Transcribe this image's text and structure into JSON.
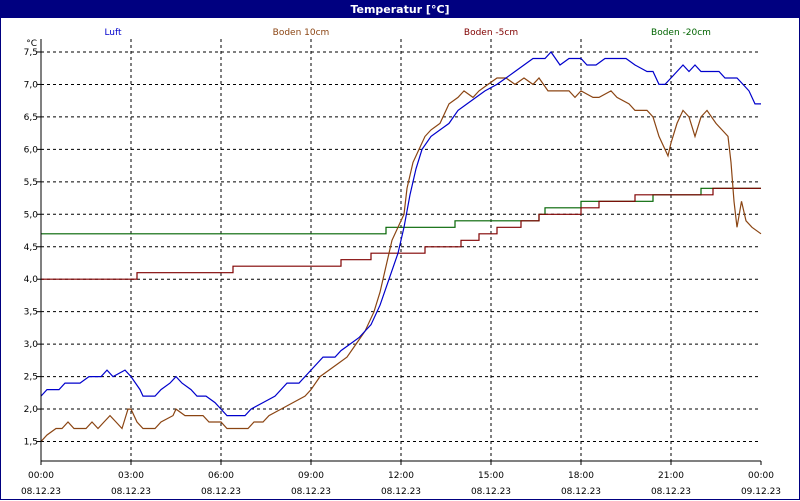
{
  "window": {
    "title": "Temperatur [°C]",
    "title_bg": "#000080"
  },
  "chart_data": {
    "type": "line",
    "title": "Temperatur [°C]",
    "unit": "°C",
    "grid": true,
    "legend_position": "top",
    "x_ticks": [
      {
        "time": "00:00",
        "date": "08.12.23"
      },
      {
        "time": "03:00",
        "date": "08.12.23"
      },
      {
        "time": "06:00",
        "date": "08.12.23"
      },
      {
        "time": "09:00",
        "date": "08.12.23"
      },
      {
        "time": "12:00",
        "date": "08.12.23"
      },
      {
        "time": "15:00",
        "date": "08.12.23"
      },
      {
        "time": "18:00",
        "date": "08.12.23"
      },
      {
        "time": "21:00",
        "date": "08.12.23"
      },
      {
        "time": "00:00",
        "date": "09.12.23"
      }
    ],
    "x_range_hours": [
      0,
      24
    ],
    "y_ticks": [
      "1,5",
      "2,0",
      "2,5",
      "3,0",
      "3,5",
      "4,0",
      "4,5",
      "5,0",
      "5,5",
      "6,0",
      "6,5",
      "7,0",
      "7,5"
    ],
    "y_range": [
      1.2,
      7.7
    ],
    "series": [
      {
        "name": "Luft",
        "color": "#0000cc",
        "points": [
          [
            0,
            2.2
          ],
          [
            0.2,
            2.3
          ],
          [
            0.6,
            2.3
          ],
          [
            0.8,
            2.4
          ],
          [
            1.3,
            2.4
          ],
          [
            1.6,
            2.5
          ],
          [
            2.0,
            2.5
          ],
          [
            2.2,
            2.6
          ],
          [
            2.4,
            2.5
          ],
          [
            2.8,
            2.6
          ],
          [
            3.0,
            2.5
          ],
          [
            3.3,
            2.3
          ],
          [
            3.4,
            2.2
          ],
          [
            3.8,
            2.2
          ],
          [
            4.0,
            2.3
          ],
          [
            4.3,
            2.4
          ],
          [
            4.5,
            2.5
          ],
          [
            4.7,
            2.4
          ],
          [
            5.0,
            2.3
          ],
          [
            5.2,
            2.2
          ],
          [
            5.5,
            2.2
          ],
          [
            5.8,
            2.1
          ],
          [
            6.0,
            2.0
          ],
          [
            6.2,
            1.9
          ],
          [
            6.8,
            1.9
          ],
          [
            7.0,
            2.0
          ],
          [
            7.4,
            2.1
          ],
          [
            7.8,
            2.2
          ],
          [
            8.0,
            2.3
          ],
          [
            8.2,
            2.4
          ],
          [
            8.6,
            2.4
          ],
          [
            8.8,
            2.5
          ],
          [
            9.0,
            2.6
          ],
          [
            9.2,
            2.7
          ],
          [
            9.4,
            2.8
          ],
          [
            9.8,
            2.8
          ],
          [
            10.0,
            2.9
          ],
          [
            10.3,
            3.0
          ],
          [
            10.6,
            3.1
          ],
          [
            11.0,
            3.3
          ],
          [
            11.3,
            3.6
          ],
          [
            11.6,
            4.0
          ],
          [
            11.9,
            4.4
          ],
          [
            12.1,
            4.8
          ],
          [
            12.3,
            5.3
          ],
          [
            12.5,
            5.7
          ],
          [
            12.7,
            6.0
          ],
          [
            13.0,
            6.2
          ],
          [
            13.3,
            6.3
          ],
          [
            13.6,
            6.4
          ],
          [
            13.9,
            6.6
          ],
          [
            14.2,
            6.7
          ],
          [
            14.5,
            6.8
          ],
          [
            14.8,
            6.9
          ],
          [
            15.2,
            7.0
          ],
          [
            15.5,
            7.1
          ],
          [
            15.8,
            7.2
          ],
          [
            16.1,
            7.3
          ],
          [
            16.4,
            7.4
          ],
          [
            16.8,
            7.4
          ],
          [
            17.0,
            7.5
          ],
          [
            17.3,
            7.3
          ],
          [
            17.6,
            7.4
          ],
          [
            18.0,
            7.4
          ],
          [
            18.2,
            7.3
          ],
          [
            18.5,
            7.3
          ],
          [
            18.8,
            7.4
          ],
          [
            19.5,
            7.4
          ],
          [
            19.8,
            7.3
          ],
          [
            20.2,
            7.2
          ],
          [
            20.4,
            7.2
          ],
          [
            20.6,
            7.0
          ],
          [
            20.8,
            7.0
          ],
          [
            21.0,
            7.1
          ],
          [
            21.2,
            7.2
          ],
          [
            21.4,
            7.3
          ],
          [
            21.6,
            7.2
          ],
          [
            21.8,
            7.3
          ],
          [
            22.0,
            7.2
          ],
          [
            22.6,
            7.2
          ],
          [
            22.8,
            7.1
          ],
          [
            23.2,
            7.1
          ],
          [
            23.4,
            7.0
          ],
          [
            23.6,
            6.9
          ],
          [
            23.8,
            6.7
          ],
          [
            24.0,
            6.7
          ]
        ]
      },
      {
        "name": "Boden 10cm",
        "color": "#8b4513",
        "points": [
          [
            0,
            1.5
          ],
          [
            0.2,
            1.6
          ],
          [
            0.5,
            1.7
          ],
          [
            0.7,
            1.7
          ],
          [
            0.9,
            1.8
          ],
          [
            1.1,
            1.7
          ],
          [
            1.5,
            1.7
          ],
          [
            1.7,
            1.8
          ],
          [
            1.9,
            1.7
          ],
          [
            2.1,
            1.8
          ],
          [
            2.3,
            1.9
          ],
          [
            2.5,
            1.8
          ],
          [
            2.7,
            1.7
          ],
          [
            2.9,
            2.0
          ],
          [
            3.0,
            2.0
          ],
          [
            3.2,
            1.8
          ],
          [
            3.4,
            1.7
          ],
          [
            3.8,
            1.7
          ],
          [
            4.0,
            1.8
          ],
          [
            4.4,
            1.9
          ],
          [
            4.5,
            2.0
          ],
          [
            4.8,
            1.9
          ],
          [
            5.4,
            1.9
          ],
          [
            5.6,
            1.8
          ],
          [
            6.0,
            1.8
          ],
          [
            6.2,
            1.7
          ],
          [
            6.9,
            1.7
          ],
          [
            7.1,
            1.8
          ],
          [
            7.4,
            1.8
          ],
          [
            7.6,
            1.9
          ],
          [
            8.0,
            2.0
          ],
          [
            8.4,
            2.1
          ],
          [
            8.8,
            2.2
          ],
          [
            9.0,
            2.3
          ],
          [
            9.3,
            2.5
          ],
          [
            9.6,
            2.6
          ],
          [
            9.9,
            2.7
          ],
          [
            10.2,
            2.8
          ],
          [
            10.5,
            3.0
          ],
          [
            10.8,
            3.2
          ],
          [
            11.1,
            3.5
          ],
          [
            11.3,
            3.8
          ],
          [
            11.5,
            4.2
          ],
          [
            11.7,
            4.6
          ],
          [
            11.9,
            4.8
          ],
          [
            12.1,
            5.0
          ],
          [
            12.2,
            5.4
          ],
          [
            12.4,
            5.8
          ],
          [
            12.6,
            6.0
          ],
          [
            12.8,
            6.2
          ],
          [
            13.0,
            6.3
          ],
          [
            13.3,
            6.4
          ],
          [
            13.6,
            6.7
          ],
          [
            13.9,
            6.8
          ],
          [
            14.1,
            6.9
          ],
          [
            14.4,
            6.8
          ],
          [
            14.6,
            6.9
          ],
          [
            14.9,
            7.0
          ],
          [
            15.2,
            7.1
          ],
          [
            15.5,
            7.1
          ],
          [
            15.8,
            7.0
          ],
          [
            16.1,
            7.1
          ],
          [
            16.4,
            7.0
          ],
          [
            16.6,
            7.1
          ],
          [
            16.9,
            6.9
          ],
          [
            17.2,
            6.9
          ],
          [
            17.6,
            6.9
          ],
          [
            17.8,
            6.8
          ],
          [
            18.0,
            6.9
          ],
          [
            18.4,
            6.8
          ],
          [
            18.6,
            6.8
          ],
          [
            19.0,
            6.9
          ],
          [
            19.2,
            6.8
          ],
          [
            19.6,
            6.7
          ],
          [
            19.8,
            6.6
          ],
          [
            20.2,
            6.6
          ],
          [
            20.4,
            6.5
          ],
          [
            20.6,
            6.2
          ],
          [
            20.8,
            6.0
          ],
          [
            20.9,
            5.9
          ],
          [
            21.0,
            6.1
          ],
          [
            21.2,
            6.4
          ],
          [
            21.4,
            6.6
          ],
          [
            21.6,
            6.5
          ],
          [
            21.8,
            6.2
          ],
          [
            22.0,
            6.5
          ],
          [
            22.2,
            6.6
          ],
          [
            22.5,
            6.4
          ],
          [
            22.7,
            6.3
          ],
          [
            22.9,
            6.2
          ],
          [
            23.0,
            5.8
          ],
          [
            23.1,
            5.2
          ],
          [
            23.2,
            4.8
          ],
          [
            23.35,
            5.2
          ],
          [
            23.5,
            4.9
          ],
          [
            23.7,
            4.8
          ],
          [
            24.0,
            4.7
          ]
        ]
      },
      {
        "name": "Boden -5cm",
        "color": "#800000",
        "points": [
          [
            0,
            4.0
          ],
          [
            3.2,
            4.0
          ],
          [
            3.2,
            4.1
          ],
          [
            6.4,
            4.1
          ],
          [
            6.4,
            4.2
          ],
          [
            10.0,
            4.2
          ],
          [
            10.0,
            4.3
          ],
          [
            11.0,
            4.3
          ],
          [
            11.0,
            4.4
          ],
          [
            12.8,
            4.4
          ],
          [
            12.8,
            4.5
          ],
          [
            14.0,
            4.5
          ],
          [
            14.0,
            4.6
          ],
          [
            14.6,
            4.6
          ],
          [
            14.6,
            4.7
          ],
          [
            15.2,
            4.7
          ],
          [
            15.2,
            4.8
          ],
          [
            16.0,
            4.8
          ],
          [
            16.0,
            4.9
          ],
          [
            16.6,
            4.9
          ],
          [
            16.6,
            5.0
          ],
          [
            18.0,
            5.0
          ],
          [
            18.0,
            5.1
          ],
          [
            18.6,
            5.1
          ],
          [
            18.6,
            5.2
          ],
          [
            19.8,
            5.2
          ],
          [
            19.8,
            5.3
          ],
          [
            22.4,
            5.3
          ],
          [
            22.4,
            5.4
          ],
          [
            24.0,
            5.4
          ]
        ]
      },
      {
        "name": "Boden -20cm",
        "color": "#006400",
        "points": [
          [
            0,
            4.7
          ],
          [
            11.5,
            4.7
          ],
          [
            11.5,
            4.8
          ],
          [
            13.8,
            4.8
          ],
          [
            13.8,
            4.9
          ],
          [
            16.6,
            4.9
          ],
          [
            16.6,
            5.0
          ],
          [
            16.8,
            5.0
          ],
          [
            16.8,
            5.1
          ],
          [
            18.0,
            5.1
          ],
          [
            18.0,
            5.2
          ],
          [
            20.4,
            5.2
          ],
          [
            20.4,
            5.3
          ],
          [
            22.0,
            5.3
          ],
          [
            22.0,
            5.4
          ],
          [
            24.0,
            5.4
          ]
        ]
      }
    ]
  }
}
